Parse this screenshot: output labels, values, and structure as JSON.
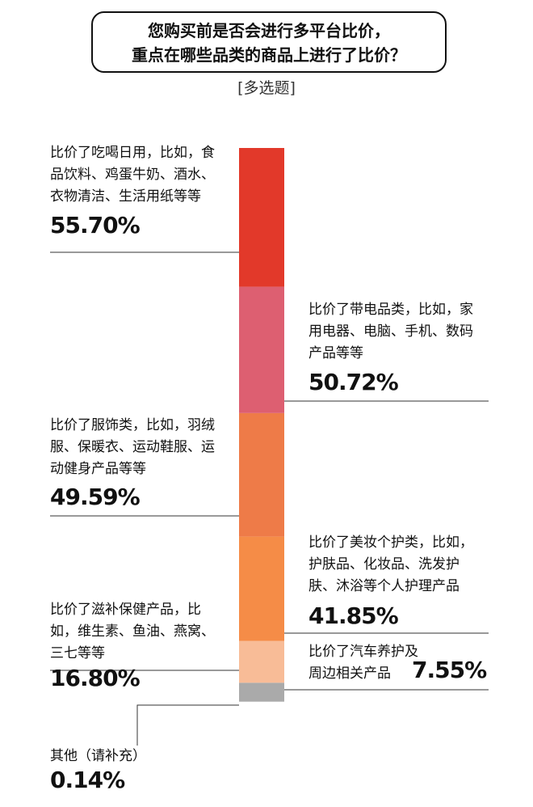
{
  "chart_data": {
    "type": "stacked-column",
    "title": [
      "您购买前是否会进行多平台比价，",
      "重点在哪些品类的商品上进行了比价？"
    ],
    "subtitle": "[多选题]",
    "categories": [
      "比价了吃喝日用，比如，食品饮料、鸡蛋牛奶、酒水、衣物清洁、生活用纸等等",
      "比价了带电品类，比如，家用电器、电脑、手机、数码产品等等",
      "比价了服饰类，比如，羽绒服、保暖衣、运动鞋服、运动健身产品等等",
      "比价了美妆个护类，比如，护肤品、化妆品、洗发护肤、沐浴等个人护理产品",
      "比价了滋补保健产品，比如，维生素、鱼油、燕窝、三七等等",
      "比价了汽车养护及周边相关产品",
      "其他（请补充）"
    ],
    "values": [
      55.7,
      50.72,
      49.59,
      41.85,
      16.8,
      7.55,
      0.14
    ],
    "value_labels": [
      "55.70%",
      "50.72%",
      "49.59%",
      "41.85%",
      "16.80%",
      "7.55%",
      "0.14%"
    ],
    "colors": [
      "#e2392a",
      "#dd5f71",
      "#ee7b48",
      "#f58c47",
      "#f8bc97",
      "#aaaaaa",
      "#dddddd"
    ]
  }
}
